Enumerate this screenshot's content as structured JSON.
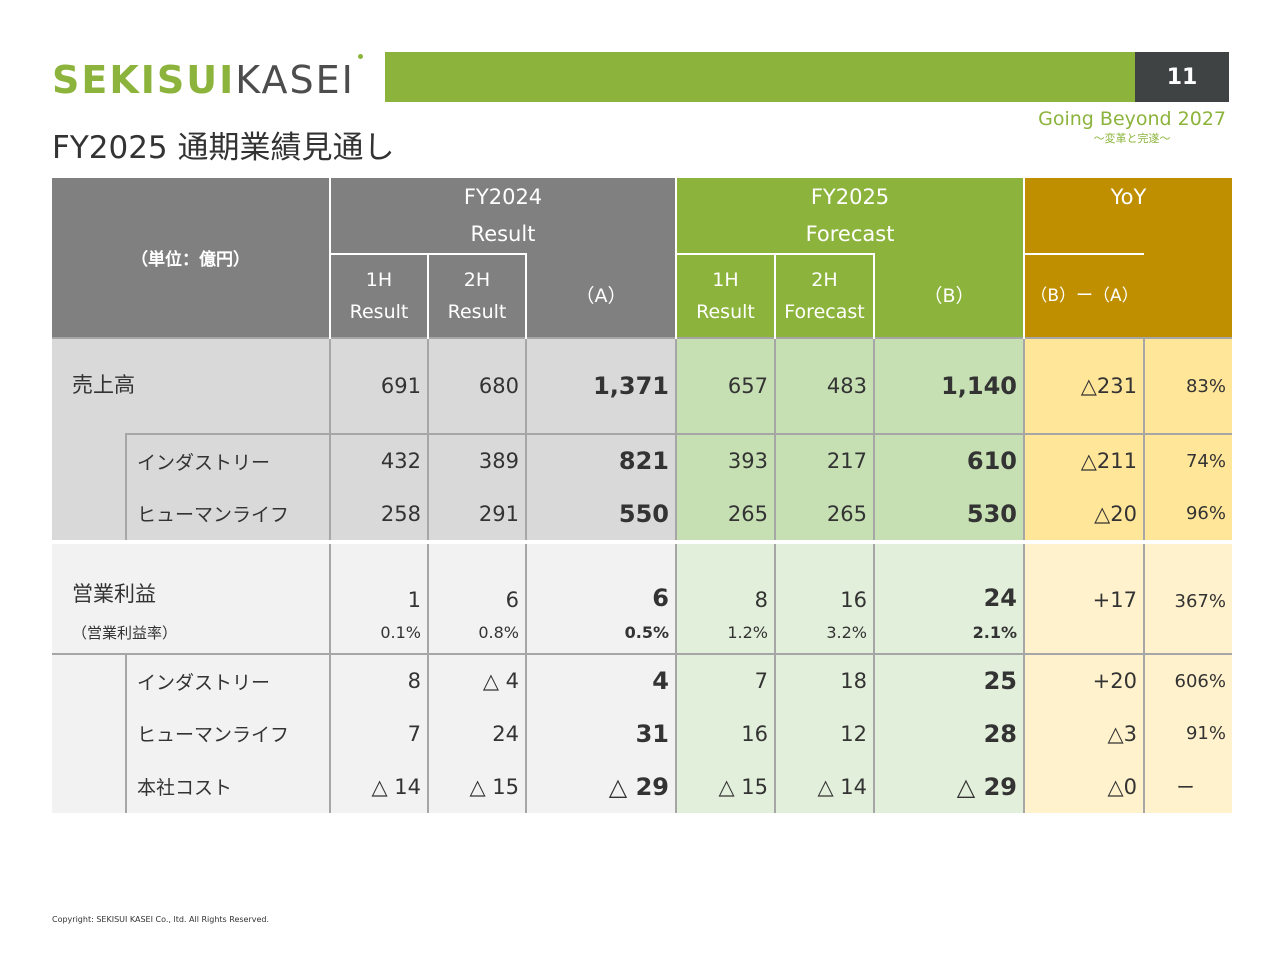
{
  "header": {
    "logo_part1": "SEKISUI",
    "logo_part2": "KASEI",
    "page_number": "11",
    "tagline": "Going Beyond 2027",
    "tagline_sub": "〜変革と完遂〜",
    "title": "FY2025 通期業績見通し"
  },
  "table": {
    "unit": "（単位：億円）",
    "fy2024_line1": "FY2024",
    "fy2024_line2": "Result",
    "fy2025_line1": "FY2025",
    "fy2025_line2": "Forecast",
    "yoy": "YoY",
    "h_1h_a": "1H",
    "h_1h_b": "Result",
    "h_2h_a": "2H",
    "h_2h_b": "Result",
    "h_A": "（A）",
    "h_f1h_a": "1H",
    "h_f1h_b": "Result",
    "h_f2h_a": "2H",
    "h_f2h_b": "Forecast",
    "h_B": "（B）",
    "h_BA": "（B）ー（A）",
    "rows": {
      "sales": {
        "label": "売上高",
        "v": [
          "691",
          "680",
          "1,371",
          "657",
          "483",
          "1,140",
          "△231",
          "83%"
        ]
      },
      "industry_s": {
        "label": "インダストリー",
        "v": [
          "432",
          "389",
          "821",
          "393",
          "217",
          "610",
          "△211",
          "74%"
        ]
      },
      "human_s": {
        "label": "ヒューマンライフ",
        "v": [
          "258",
          "291",
          "550",
          "265",
          "265",
          "530",
          "△20",
          "96%"
        ]
      },
      "op": {
        "label": "営業利益",
        "v": [
          "1",
          "6",
          "6",
          "8",
          "16",
          "24",
          "+17",
          "367%"
        ]
      },
      "ratio": {
        "label": "（営業利益率）",
        "v": [
          "0.1%",
          "0.8%",
          "0.5%",
          "1.2%",
          "3.2%",
          "2.1%"
        ]
      },
      "industry_o": {
        "label": "インダストリー",
        "v": [
          "8",
          "△ 4",
          "4",
          "7",
          "18",
          "25",
          "+20",
          "606%"
        ]
      },
      "human_o": {
        "label": "ヒューマンライフ",
        "v": [
          "7",
          "24",
          "31",
          "16",
          "12",
          "28",
          "△3",
          "91%"
        ]
      },
      "hq": {
        "label": "本社コスト",
        "v": [
          "△ 14",
          "△ 15",
          "△ 29",
          "△ 15",
          "△ 14",
          "△ 29",
          "△0",
          "ー"
        ]
      }
    }
  },
  "footer": {
    "copyright": "Copyright: SEKISUI KASEI Co., ltd. All Rights Reserved."
  },
  "colors": {
    "brand_green": "#8cb43c",
    "header_gray": "#808080",
    "yoy_gold": "#bf8f00",
    "page_box": "#3f4344"
  }
}
